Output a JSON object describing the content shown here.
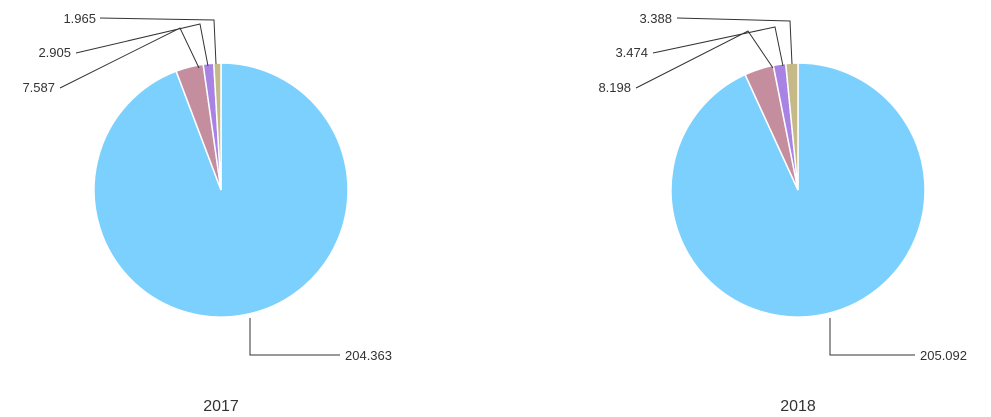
{
  "colors": {
    "series": [
      "#7bd0fd",
      "#c48e9f",
      "#a983e4",
      "#c5b988"
    ],
    "label_text": "#333333",
    "leader_line": "#333333"
  },
  "chart_data": [
    {
      "type": "pie",
      "title": "2017",
      "values": [
        204.363,
        7.587,
        2.905,
        1.965
      ],
      "value_labels": [
        "204.363",
        "7.587",
        "2.905",
        "1.965"
      ]
    },
    {
      "type": "pie",
      "title": "2018",
      "values": [
        205.092,
        8.198,
        3.474,
        3.388
      ],
      "value_labels": [
        "205.092",
        "8.198",
        "3.474",
        "3.388"
      ]
    }
  ]
}
